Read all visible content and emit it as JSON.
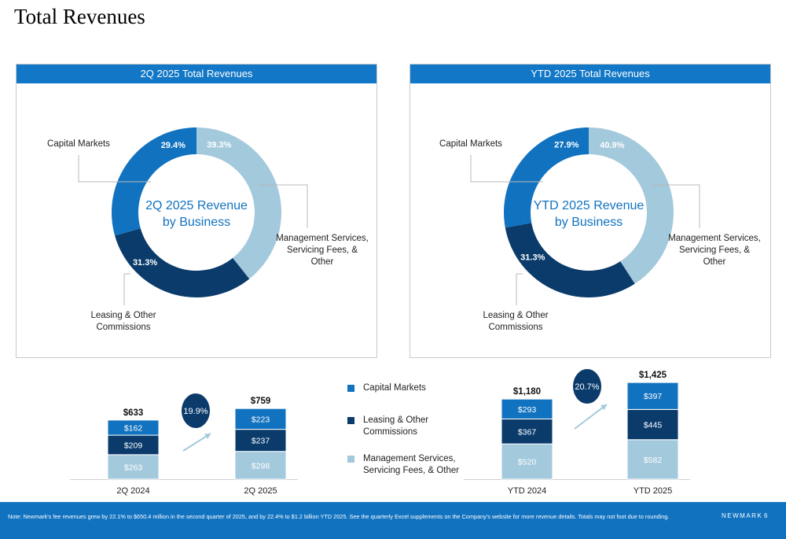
{
  "page": {
    "title": "Total Revenues",
    "footer_note": "Note: Newmark's fee revenues grew by 22.1% to $650.4 million in the second quarter of 2025, and by 22.4% to $1.2 billion YTD 2025. See the quarterly Excel supplements on the Company's website for more revenue details. Totals may not foot due to rounding.",
    "brand": "NEWMARK",
    "page_number": "6"
  },
  "colors": {
    "capital_markets": "#1172c0",
    "leasing": "#0a3b6b",
    "management": "#a3c9dc",
    "header_bar": "#1177c6",
    "growth_bubble": "#0a3b6b"
  },
  "legend": [
    {
      "label": "Capital Markets",
      "color": "#1172c0"
    },
    {
      "label": "Leasing & Other Commissions",
      "color": "#0a3b6b"
    },
    {
      "label": "Management Services, Servicing Fees, & Other",
      "color": "#a3c9dc"
    }
  ],
  "chart_data": [
    {
      "type": "pie",
      "panel_title": "2Q 2025 Total Revenues",
      "center_label": "2Q 2025 Revenue by Business",
      "slices": [
        {
          "name": "Management Services, Servicing Fees, & Other",
          "value": 39.3,
          "label": "39.3%",
          "color": "#a3c9dc"
        },
        {
          "name": "Leasing & Other Commissions",
          "value": 31.3,
          "label": "31.3%",
          "color": "#0a3b6b"
        },
        {
          "name": "Capital Markets",
          "value": 29.4,
          "label": "29.4%",
          "color": "#1172c0"
        }
      ]
    },
    {
      "type": "pie",
      "panel_title": "YTD 2025 Total Revenues",
      "center_label": "YTD 2025 Revenue by Business",
      "slices": [
        {
          "name": "Management Services, Servicing Fees, & Other",
          "value": 40.9,
          "label": "40.9%",
          "color": "#a3c9dc"
        },
        {
          "name": "Leasing & Other Commissions",
          "value": 31.3,
          "label": "31.3%",
          "color": "#0a3b6b"
        },
        {
          "name": "Capital Markets",
          "value": 27.9,
          "label": "27.9%",
          "color": "#1172c0"
        }
      ]
    },
    {
      "type": "bar",
      "stacked": true,
      "categories": [
        "2Q 2024",
        "2Q 2025"
      ],
      "series": [
        {
          "name": "Management Services, Servicing Fees, & Other",
          "values": [
            263,
            298
          ],
          "labels": [
            "$263",
            "$298"
          ]
        },
        {
          "name": "Leasing & Other Commissions",
          "values": [
            209,
            237
          ],
          "labels": [
            "$209",
            "$237"
          ]
        },
        {
          "name": "Capital Markets",
          "values": [
            162,
            223
          ],
          "labels": [
            "$162",
            "$223"
          ]
        }
      ],
      "totals": [
        "$633",
        "$759"
      ],
      "growth": "19.9%"
    },
    {
      "type": "bar",
      "stacked": true,
      "categories": [
        "YTD 2024",
        "YTD 2025"
      ],
      "series": [
        {
          "name": "Management Services, Servicing Fees, & Other",
          "values": [
            520,
            582
          ],
          "labels": [
            "$520",
            "$582"
          ]
        },
        {
          "name": "Leasing & Other Commissions",
          "values": [
            367,
            445
          ],
          "labels": [
            "$367",
            "$445"
          ]
        },
        {
          "name": "Capital Markets",
          "values": [
            293,
            397
          ],
          "labels": [
            "$293",
            "$397"
          ]
        }
      ],
      "totals": [
        "$1,180",
        "$1,425"
      ],
      "growth": "20.7%"
    }
  ]
}
